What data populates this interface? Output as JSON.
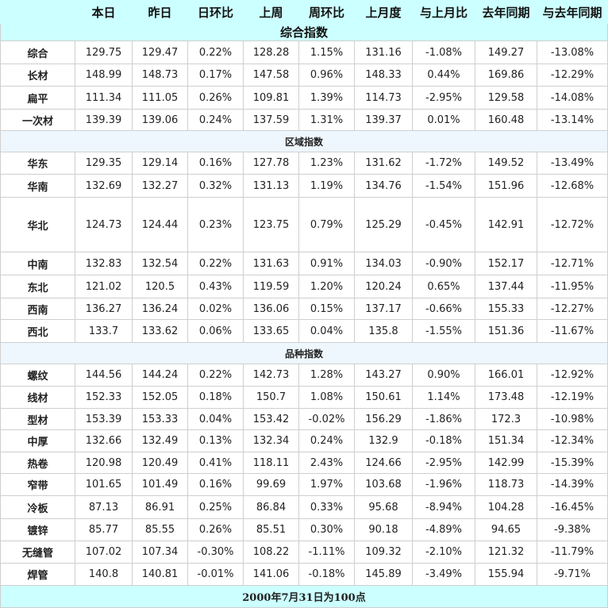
{
  "header": [
    "",
    "本日",
    "昨日",
    "日环比",
    "上周",
    "周环比",
    "上月度",
    "与上月比",
    "去年同期",
    "与去年同期"
  ],
  "title": "综合指数",
  "sections": [
    {
      "label": "",
      "rows": [
        {
          "name": "综合",
          "cells": [
            "129.75",
            "129.47",
            "0.22%",
            "128.28",
            "1.15%",
            "131.16",
            "-1.08%",
            "149.27",
            "-13.08%"
          ]
        },
        {
          "name": "长材",
          "cells": [
            "148.99",
            "148.73",
            "0.17%",
            "147.58",
            "0.96%",
            "148.33",
            "0.44%",
            "169.86",
            "-12.29%"
          ]
        },
        {
          "name": "扁平",
          "cells": [
            "111.34",
            "111.05",
            "0.26%",
            "109.81",
            "1.39%",
            "114.73",
            "-2.95%",
            "129.58",
            "-14.08%"
          ]
        },
        {
          "name": "一次材",
          "cells": [
            "139.39",
            "139.06",
            "0.24%",
            "137.59",
            "1.31%",
            "139.37",
            "0.01%",
            "160.48",
            "-13.14%"
          ]
        }
      ]
    },
    {
      "label": "区域指数",
      "rows": [
        {
          "name": "华东",
          "cells": [
            "129.35",
            "129.14",
            "0.16%",
            "127.78",
            "1.23%",
            "131.62",
            "-1.72%",
            "149.52",
            "-13.49%"
          ]
        },
        {
          "name": "华南",
          "cells": [
            "132.69",
            "132.27",
            "0.32%",
            "131.13",
            "1.19%",
            "134.76",
            "-1.54%",
            "151.96",
            "-12.68%"
          ]
        },
        {
          "name": "华北",
          "cells": [
            "124.73",
            "124.44",
            "0.23%",
            "123.75",
            "0.79%",
            "125.29",
            "-0.45%",
            "142.91",
            "-12.72%"
          ]
        },
        {
          "name": "中南",
          "cells": [
            "132.83",
            "132.54",
            "0.22%",
            "131.63",
            "0.91%",
            "134.03",
            "-0.90%",
            "152.17",
            "-12.71%"
          ]
        },
        {
          "name": "东北",
          "cells": [
            "121.02",
            "120.5",
            "0.43%",
            "119.59",
            "1.20%",
            "120.24",
            "0.65%",
            "137.44",
            "-11.95%"
          ]
        },
        {
          "name": "西南",
          "cells": [
            "136.27",
            "136.24",
            "0.02%",
            "136.06",
            "0.15%",
            "137.17",
            "-0.66%",
            "155.33",
            "-12.27%"
          ]
        },
        {
          "name": "西北",
          "cells": [
            "133.7",
            "133.62",
            "0.06%",
            "133.65",
            "0.04%",
            "135.8",
            "-1.55%",
            "151.36",
            "-11.67%"
          ]
        }
      ]
    },
    {
      "label": "品种指数",
      "rows": [
        {
          "name": "螺纹",
          "cells": [
            "144.56",
            "144.24",
            "0.22%",
            "142.73",
            "1.28%",
            "143.27",
            "0.90%",
            "166.01",
            "-12.92%"
          ]
        },
        {
          "name": "线材",
          "cells": [
            "152.33",
            "152.05",
            "0.18%",
            "150.7",
            "1.08%",
            "150.61",
            "1.14%",
            "173.48",
            "-12.19%"
          ]
        },
        {
          "name": "型材",
          "cells": [
            "153.39",
            "153.33",
            "0.04%",
            "153.42",
            "-0.02%",
            "156.29",
            "-1.86%",
            "172.3",
            "-10.98%"
          ]
        },
        {
          "name": "中厚",
          "cells": [
            "132.66",
            "132.49",
            "0.13%",
            "132.34",
            "0.24%",
            "132.9",
            "-0.18%",
            "151.34",
            "-12.34%"
          ]
        },
        {
          "name": "热卷",
          "cells": [
            "120.98",
            "120.49",
            "0.41%",
            "118.11",
            "2.43%",
            "124.66",
            "-2.95%",
            "142.99",
            "-15.39%"
          ]
        },
        {
          "name": "窄带",
          "cells": [
            "101.65",
            "101.49",
            "0.16%",
            "99.69",
            "1.97%",
            "103.68",
            "-1.96%",
            "118.73",
            "-14.39%"
          ]
        },
        {
          "name": "冷板",
          "cells": [
            "87.13",
            "86.91",
            "0.25%",
            "86.84",
            "0.33%",
            "95.68",
            "-8.94%",
            "104.28",
            "-16.45%"
          ]
        },
        {
          "name": "镀锌",
          "cells": [
            "85.77",
            "85.55",
            "0.26%",
            "85.51",
            "0.30%",
            "90.18",
            "-4.89%",
            "94.65",
            "-9.38%"
          ]
        },
        {
          "name": "无缝管",
          "cells": [
            "107.02",
            "107.34",
            "-0.30%",
            "108.22",
            "-1.11%",
            "109.32",
            "-2.10%",
            "121.32",
            "-11.79%"
          ]
        },
        {
          "name": "焊管",
          "cells": [
            "140.8",
            "140.81",
            "-0.01%",
            "141.06",
            "-0.18%",
            "145.89",
            "-3.49%",
            "155.94",
            "-9.71%"
          ]
        }
      ]
    }
  ],
  "footer": "2000年7月31日为100点",
  "colors": {
    "up": "#e21b1b",
    "down": "#118a11",
    "header_bg": "#ccffff",
    "section_bg": "#eef7fd"
  }
}
